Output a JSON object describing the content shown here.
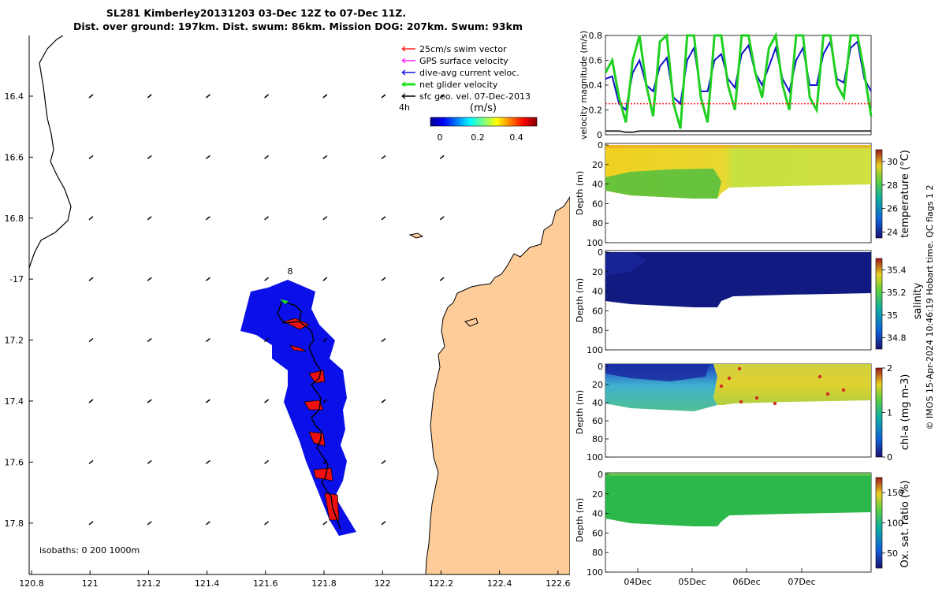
{
  "title": {
    "line1": "SL281 Kimberley20131203 03-Dec 12Z to 07-Dec 11Z.",
    "line2": "Dist. over ground: 197km. Dist. swum: 86km. Mission DOG: 207km. Swum: 93km"
  },
  "map": {
    "legend": [
      {
        "label": "25cm/s swim vector",
        "color": "#ff2020"
      },
      {
        "label": "GPS surface velocity",
        "color": "#ff20ff"
      },
      {
        "label": "dive-avg current veloc.",
        "color": "#1010e0"
      },
      {
        "label": "net glider velocity",
        "color": "#20e020"
      },
      {
        "label": "sfc geo. vel. 07-Dec-2013",
        "color": "#000000"
      }
    ],
    "colorbar_label": "(m/s)",
    "colorbar_ticks": [
      "0",
      "0.2",
      "0.4"
    ],
    "label_4h": "4h",
    "label_8": "8",
    "isobaths_label": "isobaths: 0   200  1000m",
    "lon_ticks": [
      "120.8",
      "121",
      "121.2",
      "121.4",
      "121.6",
      "121.8",
      "122",
      "122.2",
      "122.4",
      "122.6"
    ],
    "lat_ticks": [
      "16.4",
      "16.6",
      "16.8",
      "-17",
      "17.2",
      "17.4",
      "17.6",
      "17.8"
    ],
    "colors": {
      "land": "#fdcc99",
      "track_blue": "#0b10e8",
      "track_red": "#ee1010"
    }
  },
  "chart_data": [
    {
      "type": "line",
      "title": "",
      "ylabel": "velocity magnitude (m/s)",
      "ylim": [
        0,
        0.8
      ],
      "yticks": [
        "0",
        "0.2",
        "0.4",
        "0.6",
        "0.8"
      ],
      "series": [
        {
          "name": "dive-avg current veloc.",
          "color": "#1010d0",
          "values": [
            0.45,
            0.47,
            0.25,
            0.2,
            0.5,
            0.6,
            0.4,
            0.35,
            0.55,
            0.62,
            0.3,
            0.25,
            0.6,
            0.7,
            0.35,
            0.35,
            0.6,
            0.65,
            0.45,
            0.38,
            0.65,
            0.72,
            0.5,
            0.4,
            0.55,
            0.7,
            0.45,
            0.35,
            0.6,
            0.7,
            0.4,
            0.4,
            0.65,
            0.75,
            0.45,
            0.42,
            0.7,
            0.75,
            0.45,
            0.35
          ]
        },
        {
          "name": "net glider velocity",
          "color": "#20d020",
          "values": [
            0.5,
            0.6,
            0.3,
            0.1,
            0.6,
            0.8,
            0.4,
            0.15,
            0.75,
            0.8,
            0.25,
            0.05,
            0.8,
            0.8,
            0.3,
            0.1,
            0.8,
            0.8,
            0.4,
            0.2,
            0.8,
            0.8,
            0.5,
            0.3,
            0.7,
            0.8,
            0.4,
            0.2,
            0.8,
            0.8,
            0.3,
            0.2,
            0.8,
            0.8,
            0.4,
            0.3,
            0.8,
            0.8,
            0.5,
            0.15
          ]
        },
        {
          "name": "25cm/s swim vector",
          "color": "#ff2020",
          "values": [
            0.25,
            0.25,
            0.25,
            0.25,
            0.25,
            0.25,
            0.25,
            0.25,
            0.25,
            0.25,
            0.25,
            0.25,
            0.25,
            0.25,
            0.25,
            0.25,
            0.25,
            0.25,
            0.25,
            0.25,
            0.25,
            0.25,
            0.25,
            0.25,
            0.25,
            0.25,
            0.25,
            0.25,
            0.25,
            0.25,
            0.25,
            0.25,
            0.25,
            0.25,
            0.25,
            0.25,
            0.25,
            0.25,
            0.25,
            0.25
          ]
        },
        {
          "name": "sfc geo. vel.",
          "color": "#303030",
          "values": [
            0.03,
            0.03,
            0.03,
            0.02,
            0.02,
            0.03,
            0.03,
            0.03,
            0.03,
            0.03,
            0.03,
            0.03,
            0.03,
            0.03,
            0.03,
            0.03,
            0.03,
            0.03,
            0.03,
            0.03,
            0.03,
            0.03,
            0.03,
            0.03,
            0.03,
            0.03,
            0.03,
            0.03,
            0.03,
            0.03,
            0.03,
            0.03,
            0.03,
            0.03,
            0.03,
            0.03,
            0.03,
            0.03,
            0.03,
            0.03
          ]
        }
      ]
    },
    {
      "type": "heatmap",
      "ylabel": "Depth (m)",
      "ylim": [
        100,
        0
      ],
      "yticks": [
        "0",
        "20",
        "40",
        "60",
        "80",
        "100"
      ],
      "colorbar_label": "temperature (°C)",
      "colorbar_ticks": [
        "24",
        "26",
        "28",
        "30"
      ],
      "colorbar_range": [
        23.5,
        31
      ]
    },
    {
      "type": "heatmap",
      "ylabel": "Depth (m)",
      "ylim": [
        100,
        0
      ],
      "yticks": [
        "0",
        "20",
        "40",
        "60",
        "80",
        "100"
      ],
      "colorbar_label": "salinity",
      "colorbar_ticks": [
        "34.8",
        "35",
        "35.2",
        "35.4"
      ],
      "colorbar_range": [
        34.7,
        35.5
      ]
    },
    {
      "type": "heatmap",
      "ylabel": "Depth (m)",
      "ylim": [
        100,
        0
      ],
      "yticks": [
        "0",
        "20",
        "40",
        "60",
        "80",
        "100"
      ],
      "colorbar_label": "chl-a (mg m-3)",
      "colorbar_ticks": [
        "0",
        "1",
        "2"
      ],
      "colorbar_range": [
        0,
        2
      ]
    },
    {
      "type": "heatmap",
      "ylabel": "Depth (m)",
      "ylim": [
        100,
        0
      ],
      "yticks": [
        "0",
        "20",
        "40",
        "60",
        "80",
        "100"
      ],
      "colorbar_label": "Ox. sat. ratio (%)",
      "colorbar_ticks": [
        "50",
        "100",
        "150"
      ],
      "colorbar_range": [
        25,
        175
      ]
    }
  ],
  "time_axis": {
    "ticks": [
      "04Dec",
      "05Dec",
      "06Dec",
      "07Dec"
    ]
  },
  "footer_text": "© IMOS 15-Apr-2024 10:46:19 Hobart time. QC flags 1  2"
}
